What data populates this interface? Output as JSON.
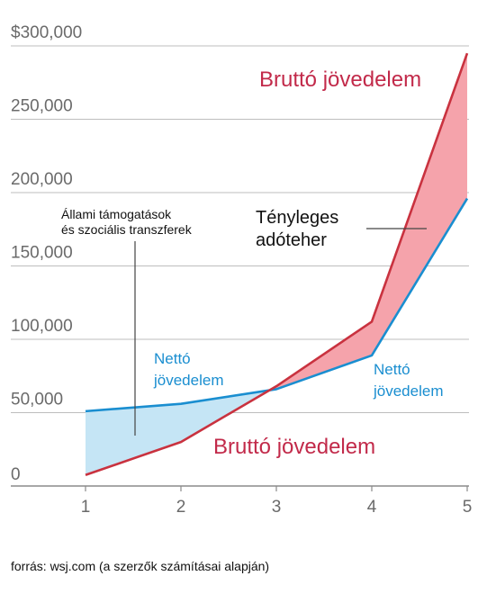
{
  "chart_data": {
    "type": "line",
    "x": [
      1,
      2,
      3,
      4,
      5
    ],
    "series": [
      {
        "name": "Bruttó jövedelem",
        "values": [
          7500,
          30000,
          68000,
          112000,
          295000
        ]
      },
      {
        "name": "Nettó jövedelem",
        "values": [
          51000,
          56000,
          66000,
          89000,
          196000
        ]
      }
    ],
    "ylim": [
      0,
      300000
    ],
    "xlim": [
      1,
      5
    ],
    "yticks": [
      "0",
      "50,000",
      "100,000",
      "150,000",
      "200,000",
      "250,000",
      "$300,000"
    ],
    "xticks": [
      "1",
      "2",
      "3",
      "4",
      "5"
    ],
    "grid": true,
    "colors": {
      "gross": "#c9323f",
      "net": "#1a8ed0",
      "gross_fill": "#f5a3ab",
      "net_fill": "#c5e5f5",
      "grid": "#bdbdbd",
      "label_gross": "#c22a4a"
    },
    "annotations": {
      "gross_top": "Bruttó jövedelem",
      "gross_bottom": "Bruttó jövedelem",
      "net_left": [
        "Nettó",
        "jövedelem"
      ],
      "net_right": [
        "Nettó",
        "jövedelem"
      ],
      "transfers": [
        "Állami támogatások",
        "és szociális transzferek"
      ],
      "tax_burden": [
        "Tényleges",
        "adóteher"
      ]
    }
  },
  "source": "forrás: wsj.com (a szerzők számításai alapján)"
}
